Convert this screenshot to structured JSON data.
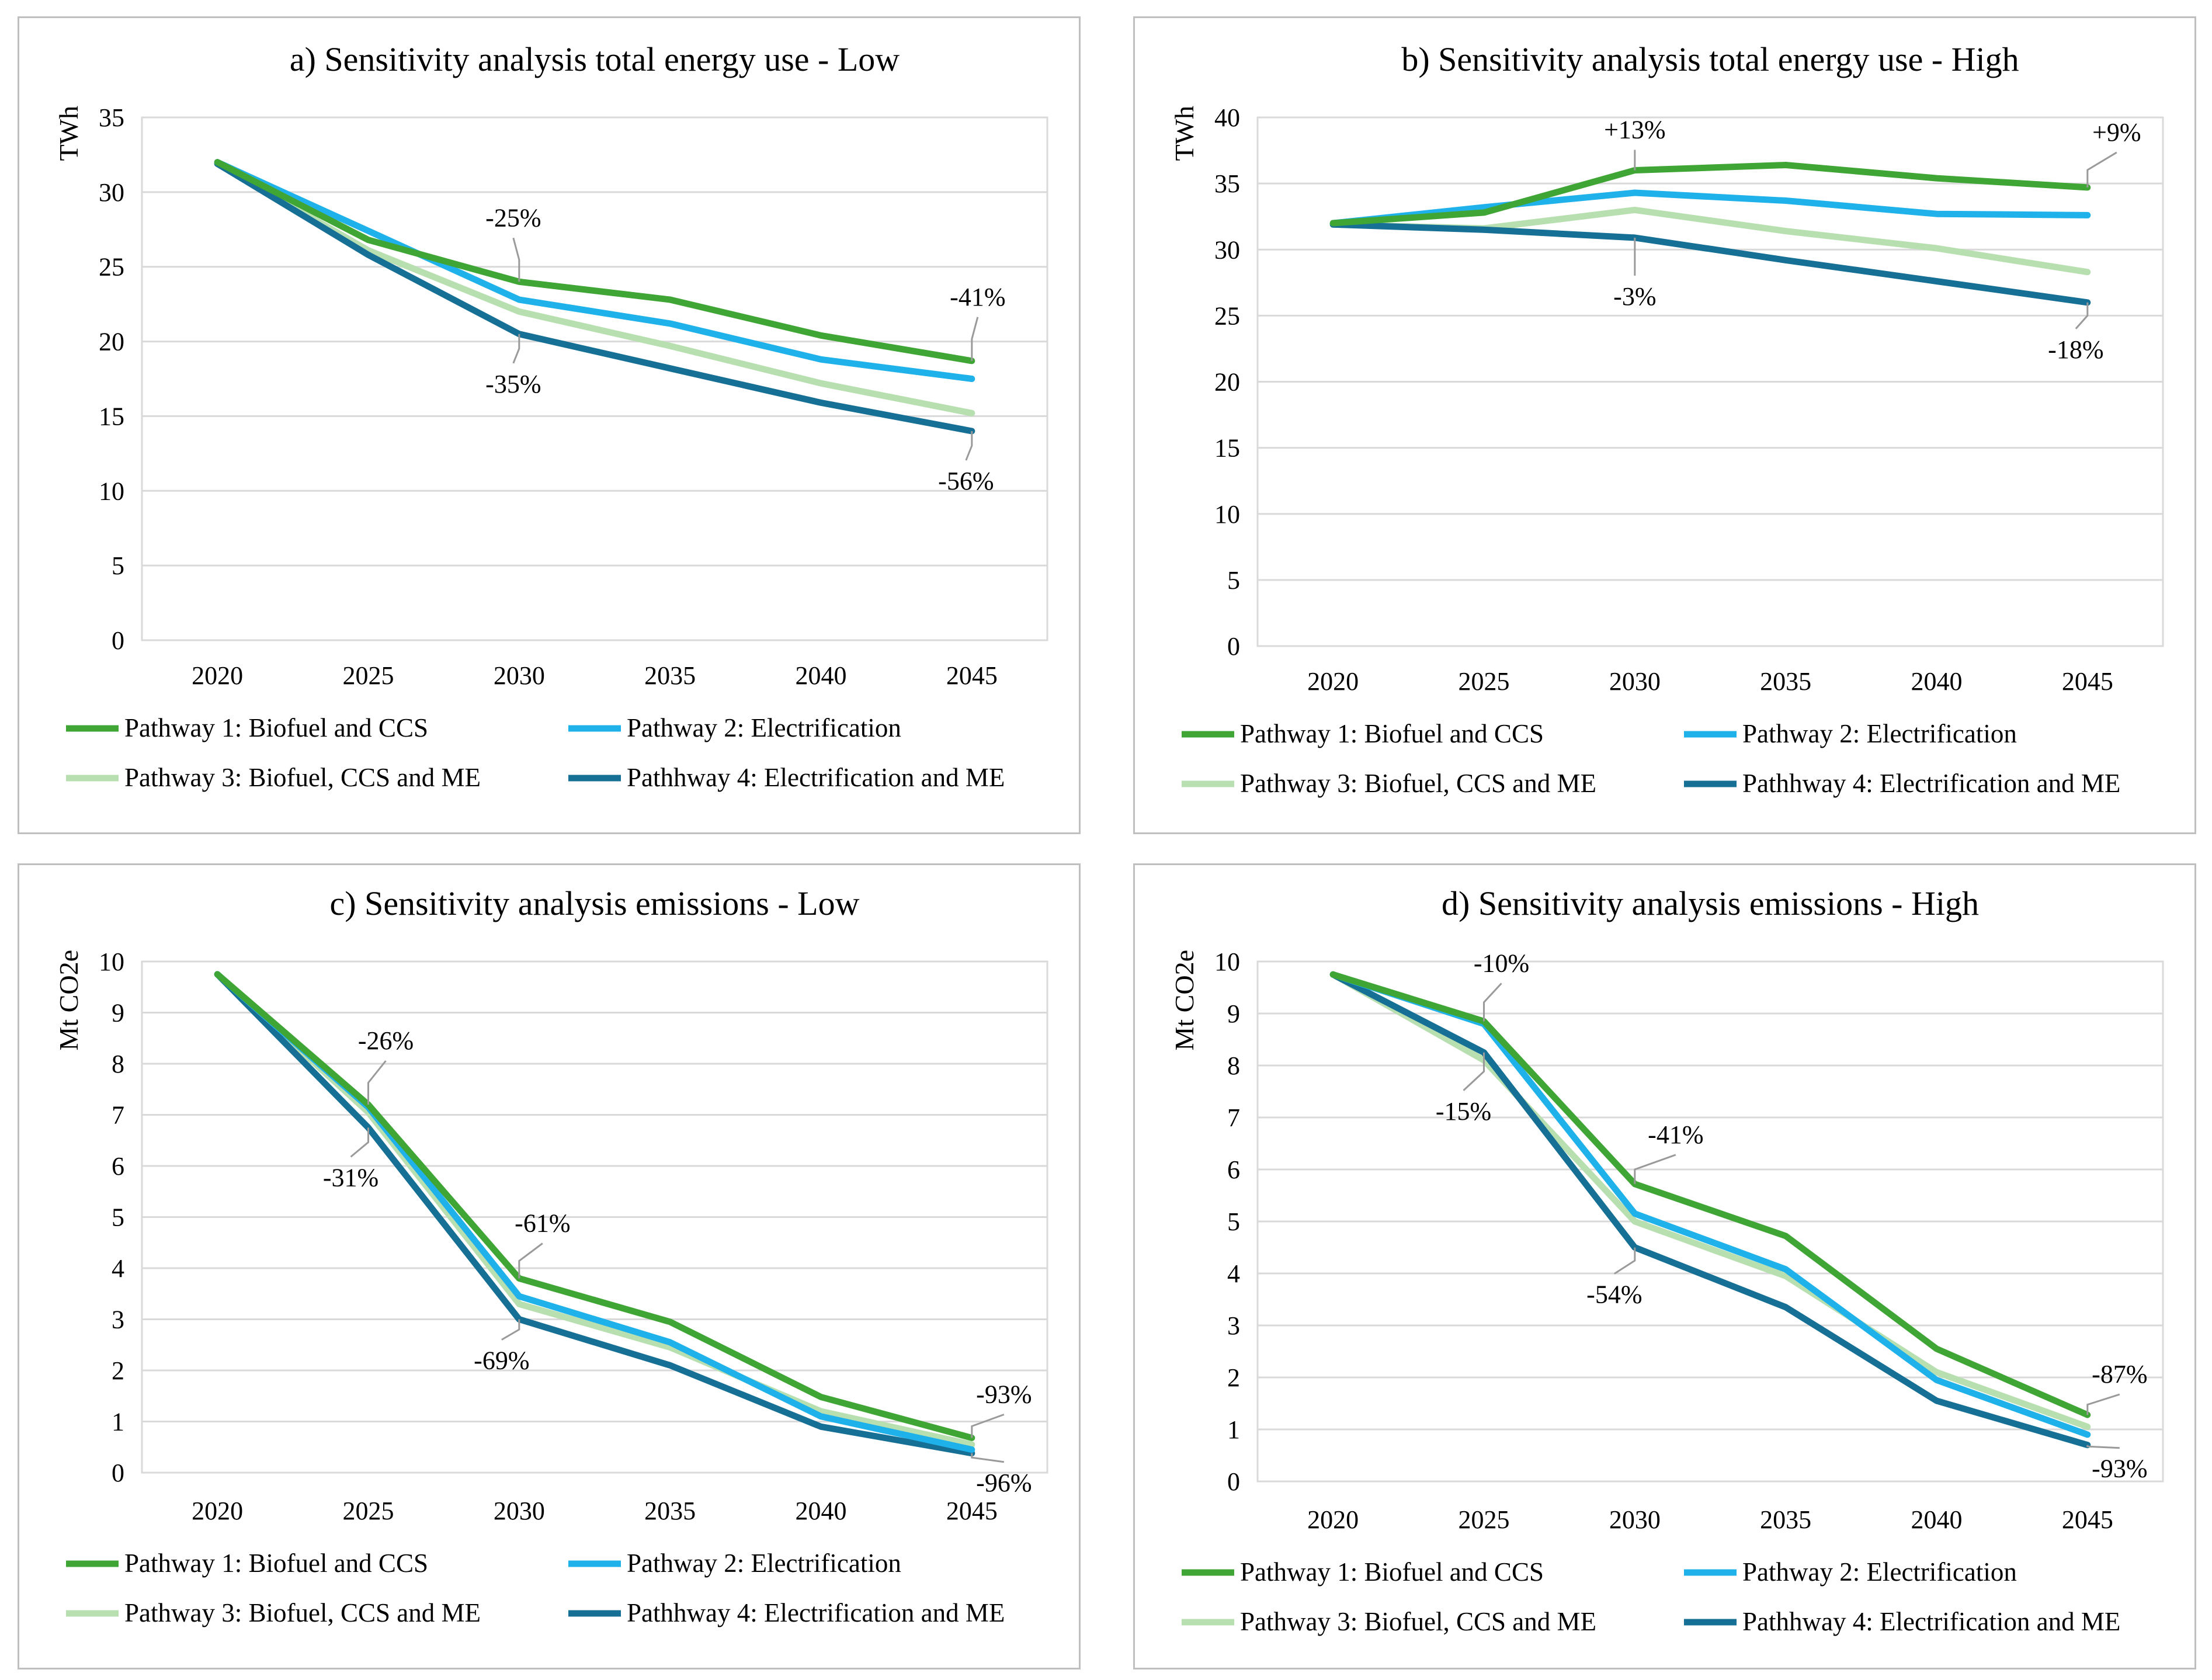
{
  "colors": {
    "pathway1": "#3fa535",
    "pathway2": "#1fb1ea",
    "pathway3": "#b8dfb0",
    "pathway4": "#166f94",
    "grid": "#d9d9d9",
    "leader": "#9a9a9a"
  },
  "chart_data": [
    {
      "id": "a",
      "type": "line",
      "title": "a) Sensitivity analysis total energy use - Low",
      "xlabel": "",
      "ylabel": "TWh",
      "ylim": [
        0,
        35
      ],
      "ystep": 5,
      "categories": [
        "2020",
        "2025",
        "2030",
        "2035",
        "2040",
        "2045"
      ],
      "series": [
        {
          "name": "Pathway 1: Biofuel and CCS",
          "values": [
            32.0,
            26.8,
            24.0,
            22.8,
            20.4,
            18.7
          ]
        },
        {
          "name": "Pathway 2: Electrification",
          "values": [
            32.0,
            27.4,
            22.8,
            21.2,
            18.8,
            17.5
          ]
        },
        {
          "name": "Pathway 3: Biofuel, CCS and ME",
          "values": [
            31.9,
            26.1,
            22.0,
            19.7,
            17.2,
            15.2
          ]
        },
        {
          "name": "Pathhway 4: Electrification and ME",
          "values": [
            31.9,
            25.8,
            20.5,
            18.2,
            15.9,
            14.0
          ]
        }
      ],
      "annotations": [
        {
          "text": "-25%",
          "series": 0,
          "index": 2
        },
        {
          "text": "-35%",
          "series": 3,
          "index": 2
        },
        {
          "text": "-41%",
          "series": 0,
          "index": 5
        },
        {
          "text": "-56%",
          "series": 3,
          "index": 5
        }
      ]
    },
    {
      "id": "b",
      "type": "line",
      "title": "b) Sensitivity analysis total energy use - High",
      "xlabel": "",
      "ylabel": "TWh",
      "ylim": [
        0,
        40
      ],
      "ystep": 5,
      "categories": [
        "2020",
        "2025",
        "2030",
        "2035",
        "2040",
        "2045"
      ],
      "series": [
        {
          "name": "Pathway 1: Biofuel and CCS",
          "values": [
            32.0,
            32.8,
            36.0,
            36.4,
            35.4,
            34.7
          ]
        },
        {
          "name": "Pathway 2: Electrification",
          "values": [
            32.0,
            33.2,
            34.3,
            33.7,
            32.7,
            32.6
          ]
        },
        {
          "name": "Pathway 3: Biofuel, CCS and ME",
          "values": [
            31.9,
            31.6,
            33.0,
            31.4,
            30.1,
            28.3
          ]
        },
        {
          "name": "Pathhway 4: Electrification and ME",
          "values": [
            31.9,
            31.5,
            30.9,
            29.2,
            27.6,
            26.0
          ]
        }
      ],
      "annotations": [
        {
          "text": "+13%",
          "series": 0,
          "index": 2
        },
        {
          "text": "-3%",
          "series": 3,
          "index": 2
        },
        {
          "text": "+9%",
          "series": 0,
          "index": 5
        },
        {
          "text": "-18%",
          "series": 3,
          "index": 5
        }
      ]
    },
    {
      "id": "c",
      "type": "line",
      "title": "c) Sensitivity analysis emissions - Low",
      "xlabel": "",
      "ylabel": "Mt CO2e",
      "ylim": [
        0,
        10
      ],
      "ystep": 1,
      "categories": [
        "2020",
        "2025",
        "2030",
        "2035",
        "2040",
        "2045"
      ],
      "series": [
        {
          "name": "Pathway 1: Biofuel and CCS",
          "values": [
            9.75,
            7.2,
            3.8,
            2.95,
            1.48,
            0.68
          ]
        },
        {
          "name": "Pathway 2: Electrification",
          "values": [
            9.75,
            7.15,
            3.45,
            2.55,
            1.1,
            0.45
          ]
        },
        {
          "name": "Pathway 3: Biofuel, CCS and ME",
          "values": [
            9.75,
            7.05,
            3.3,
            2.45,
            1.2,
            0.55
          ]
        },
        {
          "name": "Pathhway 4: Electrification and ME",
          "values": [
            9.75,
            6.75,
            3.0,
            2.1,
            0.9,
            0.38
          ]
        }
      ],
      "annotations": [
        {
          "text": "-26%",
          "series": 0,
          "index": 1
        },
        {
          "text": "-31%",
          "series": 3,
          "index": 1
        },
        {
          "text": "-61%",
          "series": 0,
          "index": 2
        },
        {
          "text": "-69%",
          "series": 3,
          "index": 2
        },
        {
          "text": "-93%",
          "series": 0,
          "index": 5
        },
        {
          "text": "-96%",
          "series": 3,
          "index": 5
        }
      ]
    },
    {
      "id": "d",
      "type": "line",
      "title": "d) Sensitivity analysis emissions - High",
      "xlabel": "",
      "ylabel": "Mt CO2e",
      "ylim": [
        0,
        10
      ],
      "ystep": 1,
      "categories": [
        "2020",
        "2025",
        "2030",
        "2035",
        "2040",
        "2045"
      ],
      "series": [
        {
          "name": "Pathway 1: Biofuel and CCS",
          "values": [
            9.75,
            8.85,
            5.72,
            4.72,
            2.55,
            1.28
          ]
        },
        {
          "name": "Pathway 2: Electrification",
          "values": [
            9.75,
            8.8,
            5.15,
            4.08,
            1.95,
            0.9
          ]
        },
        {
          "name": "Pathway 3: Biofuel, CCS and ME",
          "values": [
            9.75,
            8.1,
            5.0,
            3.95,
            2.1,
            1.05
          ]
        },
        {
          "name": "Pathhway 4: Electrification and ME",
          "values": [
            9.75,
            8.25,
            4.5,
            3.35,
            1.55,
            0.7
          ]
        }
      ],
      "annotations": [
        {
          "text": "-10%",
          "series": 0,
          "index": 1
        },
        {
          "text": "-15%",
          "series": 3,
          "index": 1
        },
        {
          "text": "-41%",
          "series": 0,
          "index": 2
        },
        {
          "text": "-54%",
          "series": 3,
          "index": 2
        },
        {
          "text": "-87%",
          "series": 0,
          "index": 5
        },
        {
          "text": "-93%",
          "series": 3,
          "index": 5
        }
      ]
    }
  ]
}
